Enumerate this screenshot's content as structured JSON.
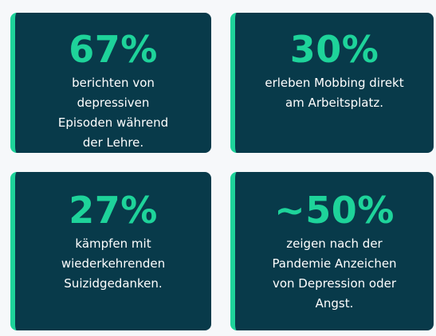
{
  "cards": [
    {
      "value": "67%",
      "text": "berichten von depressiven Episoden während der Lehre."
    },
    {
      "value": "30%",
      "text": "erleben Mobbing direkt am Arbeitsplatz."
    },
    {
      "value": "27%",
      "text": "kämpfen mit wiederkehrenden Suizidgedanken."
    },
    {
      "value": "~50%",
      "text": "zeigen nach der Pandemie Anzeichen von Depression oder Angst."
    }
  ],
  "colors": {
    "background": "#f6f8fa",
    "card": "#083a4a",
    "accent": "#1ed39a",
    "text": "#ffffff"
  }
}
